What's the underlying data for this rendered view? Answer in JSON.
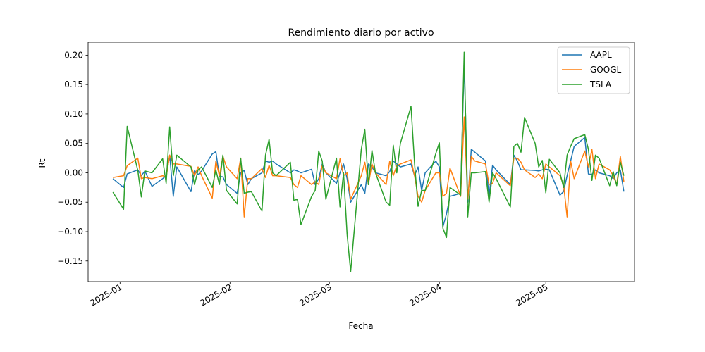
{
  "chart_data": {
    "type": "line",
    "title": "Rendimiento diario por activo",
    "xlabel": "Fecha",
    "ylabel": "Rt",
    "x_axis_type": "date",
    "xlim": [
      "2024-12-23",
      "2025-05-26"
    ],
    "ylim": [
      -0.185,
      0.222
    ],
    "x_ticks": [
      {
        "date": "2025-01-01",
        "label": "2025-01"
      },
      {
        "date": "2025-02-01",
        "label": "2025-02"
      },
      {
        "date": "2025-03-01",
        "label": "2025-03"
      },
      {
        "date": "2025-04-01",
        "label": "2025-04"
      },
      {
        "date": "2025-05-01",
        "label": "2025-05"
      }
    ],
    "y_ticks": [
      {
        "value": 0.2,
        "label": "0.20"
      },
      {
        "value": 0.15,
        "label": "0.15"
      },
      {
        "value": 0.1,
        "label": "0.10"
      },
      {
        "value": 0.05,
        "label": "0.05"
      },
      {
        "value": 0.0,
        "label": "0.00"
      },
      {
        "value": -0.05,
        "label": "−0.05"
      },
      {
        "value": -0.1,
        "label": "−0.10"
      },
      {
        "value": -0.15,
        "label": "−0.15"
      }
    ],
    "grid": false,
    "legend_position": "top-right",
    "x": [
      "2024-12-30",
      "2025-01-02",
      "2025-01-03",
      "2025-01-06",
      "2025-01-07",
      "2025-01-08",
      "2025-01-10",
      "2025-01-13",
      "2025-01-14",
      "2025-01-15",
      "2025-01-16",
      "2025-01-17",
      "2025-01-21",
      "2025-01-22",
      "2025-01-23",
      "2025-01-24",
      "2025-01-27",
      "2025-01-28",
      "2025-01-29",
      "2025-01-30",
      "2025-01-31",
      "2025-02-03",
      "2025-02-04",
      "2025-02-05",
      "2025-02-06",
      "2025-02-07",
      "2025-02-10",
      "2025-02-11",
      "2025-02-12",
      "2025-02-13",
      "2025-02-14",
      "2025-02-18",
      "2025-02-19",
      "2025-02-20",
      "2025-02-21",
      "2025-02-24",
      "2025-02-25",
      "2025-02-26",
      "2025-02-27",
      "2025-02-28",
      "2025-03-03",
      "2025-03-04",
      "2025-03-05",
      "2025-03-06",
      "2025-03-07",
      "2025-03-10",
      "2025-03-11",
      "2025-03-12",
      "2025-03-13",
      "2025-03-14",
      "2025-03-17",
      "2025-03-18",
      "2025-03-19",
      "2025-03-20",
      "2025-03-21",
      "2025-03-24",
      "2025-03-25",
      "2025-03-26",
      "2025-03-27",
      "2025-03-28",
      "2025-03-31",
      "2025-04-01",
      "2025-04-02",
      "2025-04-03",
      "2025-04-04",
      "2025-04-07",
      "2025-04-08",
      "2025-04-09",
      "2025-04-10",
      "2025-04-11",
      "2025-04-14",
      "2025-04-15",
      "2025-04-16",
      "2025-04-17",
      "2025-04-21",
      "2025-04-22",
      "2025-04-23",
      "2025-04-24",
      "2025-04-25",
      "2025-04-28",
      "2025-04-29",
      "2025-04-30",
      "2025-05-01",
      "2025-05-02",
      "2025-05-05",
      "2025-05-06",
      "2025-05-07",
      "2025-05-08",
      "2025-05-09",
      "2025-05-12",
      "2025-05-13",
      "2025-05-14",
      "2025-05-15",
      "2025-05-16",
      "2025-05-19",
      "2025-05-20",
      "2025-05-21",
      "2025-05-22",
      "2025-05-23"
    ],
    "series": [
      {
        "name": "AAPL",
        "color": "#1f77b4",
        "values": [
          -0.01,
          -0.025,
          -0.002,
          0.005,
          -0.005,
          0.003,
          -0.023,
          -0.01,
          -0.005,
          0.03,
          -0.04,
          0.01,
          -0.032,
          0.004,
          -0.003,
          0.003,
          0.032,
          0.036,
          -0.006,
          -0.007,
          -0.02,
          -0.035,
          0.0,
          0.004,
          -0.02,
          -0.01,
          0.0,
          0.02,
          0.018,
          0.02,
          0.015,
          0.0,
          0.005,
          0.003,
          0.0,
          0.006,
          -0.02,
          -0.01,
          0.015,
          0.0,
          -0.018,
          0.0,
          0.015,
          -0.01,
          -0.05,
          -0.02,
          -0.035,
          0.015,
          0.01,
          0.0,
          -0.005,
          0.002,
          0.02,
          0.015,
          0.01,
          0.015,
          -0.005,
          0.01,
          -0.03,
          0.0,
          0.02,
          0.01,
          -0.092,
          -0.07,
          -0.04,
          -0.035,
          0.19,
          -0.05,
          0.04,
          0.035,
          0.02,
          -0.04,
          0.013,
          0.005,
          -0.02,
          0.03,
          0.02,
          0.005,
          0.005,
          0.004,
          0.003,
          0.005,
          0.006,
          0.005,
          -0.038,
          -0.032,
          -0.005,
          0.02,
          0.045,
          0.06,
          -0.002,
          -0.003,
          0.005,
          0.0,
          -0.005,
          -0.01,
          0.0,
          0.005,
          -0.032
        ]
      },
      {
        "name": "GOOGL",
        "color": "#ff7f0e",
        "values": [
          -0.008,
          -0.005,
          0.012,
          0.025,
          -0.01,
          -0.008,
          -0.01,
          -0.005,
          -0.008,
          0.03,
          0.015,
          0.015,
          0.011,
          -0.005,
          0.01,
          -0.005,
          -0.043,
          0.02,
          -0.005,
          0.028,
          0.01,
          -0.01,
          0.025,
          -0.075,
          -0.01,
          -0.01,
          0.007,
          -0.008,
          0.013,
          -0.005,
          -0.005,
          -0.008,
          -0.02,
          -0.025,
          -0.005,
          -0.02,
          -0.015,
          -0.02,
          0.012,
          0.0,
          -0.01,
          0.024,
          -0.005,
          0.0,
          -0.045,
          -0.005,
          0.018,
          -0.02,
          0.015,
          0.0,
          -0.02,
          0.02,
          -0.005,
          0.012,
          0.015,
          0.022,
          -0.005,
          -0.04,
          -0.05,
          -0.03,
          0.0,
          0.0,
          -0.04,
          -0.035,
          0.008,
          -0.04,
          0.095,
          -0.045,
          0.028,
          0.02,
          0.015,
          -0.02,
          -0.018,
          0.0,
          -0.022,
          0.025,
          0.025,
          0.018,
          0.005,
          -0.008,
          -0.002,
          -0.01,
          0.015,
          0.01,
          -0.005,
          -0.02,
          -0.075,
          0.02,
          -0.01,
          0.037,
          0.01,
          0.04,
          -0.01,
          0.015,
          0.005,
          -0.005,
          -0.02,
          0.028,
          -0.015
        ]
      },
      {
        "name": "TSLA",
        "color": "#2ca02c",
        "values": [
          -0.033,
          -0.062,
          0.079,
          0.004,
          -0.041,
          0.003,
          0.0,
          0.024,
          -0.018,
          0.078,
          -0.005,
          0.03,
          0.01,
          -0.02,
          0.005,
          0.01,
          -0.025,
          0.005,
          -0.02,
          0.03,
          -0.03,
          -0.053,
          0.025,
          -0.035,
          -0.033,
          -0.032,
          -0.065,
          0.03,
          0.057,
          0.0,
          -0.005,
          0.018,
          -0.047,
          -0.045,
          -0.088,
          -0.04,
          -0.03,
          0.037,
          0.02,
          -0.045,
          0.025,
          -0.058,
          0.0,
          -0.105,
          -0.168,
          0.04,
          0.074,
          -0.02,
          0.038,
          0.0,
          -0.05,
          -0.055,
          0.047,
          0.0,
          0.05,
          0.113,
          0.016,
          -0.057,
          -0.03,
          -0.03,
          0.033,
          0.051,
          -0.094,
          -0.11,
          -0.025,
          -0.038,
          0.205,
          -0.075,
          0.0,
          0.0,
          0.002,
          -0.05,
          0.0,
          -0.01,
          -0.058,
          0.045,
          0.05,
          0.035,
          0.094,
          0.05,
          0.01,
          0.021,
          -0.034,
          0.023,
          0.0,
          -0.025,
          0.03,
          0.045,
          0.058,
          0.065,
          0.04,
          -0.013,
          0.03,
          0.025,
          -0.022,
          0.002,
          -0.022,
          0.018,
          -0.005
        ]
      }
    ]
  }
}
